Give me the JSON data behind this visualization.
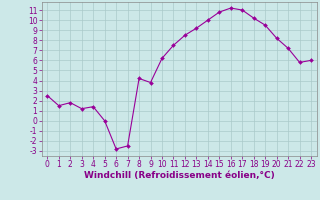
{
  "x": [
    0,
    1,
    2,
    3,
    4,
    5,
    6,
    7,
    8,
    9,
    10,
    11,
    12,
    13,
    14,
    15,
    16,
    17,
    18,
    19,
    20,
    21,
    22,
    23
  ],
  "y": [
    2.5,
    1.5,
    1.8,
    1.2,
    1.4,
    0.0,
    -2.8,
    -2.5,
    4.2,
    3.8,
    6.2,
    7.5,
    8.5,
    9.2,
    10.0,
    10.8,
    11.2,
    11.0,
    10.2,
    9.5,
    8.2,
    7.2,
    5.8,
    6.0
  ],
  "line_color": "#990099",
  "marker": "D",
  "marker_size": 2,
  "bg_color": "#cce8e8",
  "grid_color": "#aacaca",
  "xlabel": "Windchill (Refroidissement éolien,°C)",
  "ylim": [
    -3.5,
    11.8
  ],
  "xlim": [
    -0.5,
    23.5
  ],
  "yticks": [
    -3,
    -2,
    -1,
    0,
    1,
    2,
    3,
    4,
    5,
    6,
    7,
    8,
    9,
    10,
    11
  ],
  "xticks": [
    0,
    1,
    2,
    3,
    4,
    5,
    6,
    7,
    8,
    9,
    10,
    11,
    12,
    13,
    14,
    15,
    16,
    17,
    18,
    19,
    20,
    21,
    22,
    23
  ],
  "tick_fontsize": 5.5,
  "label_fontsize": 6.5,
  "label_color": "#880088",
  "spine_color": "#888888"
}
